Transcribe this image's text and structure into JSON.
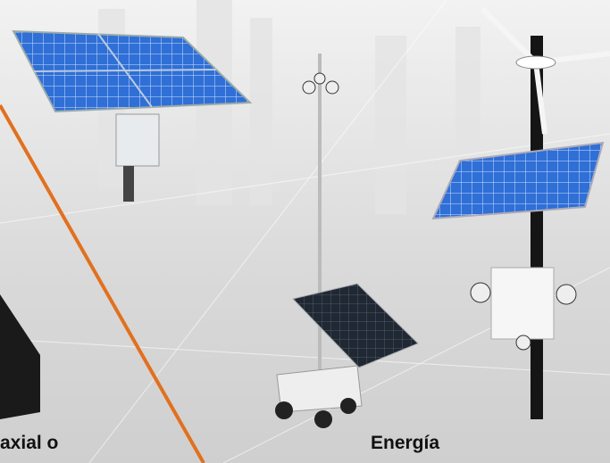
{
  "texts": {
    "left": "axial o",
    "right": "Energía"
  }
}
